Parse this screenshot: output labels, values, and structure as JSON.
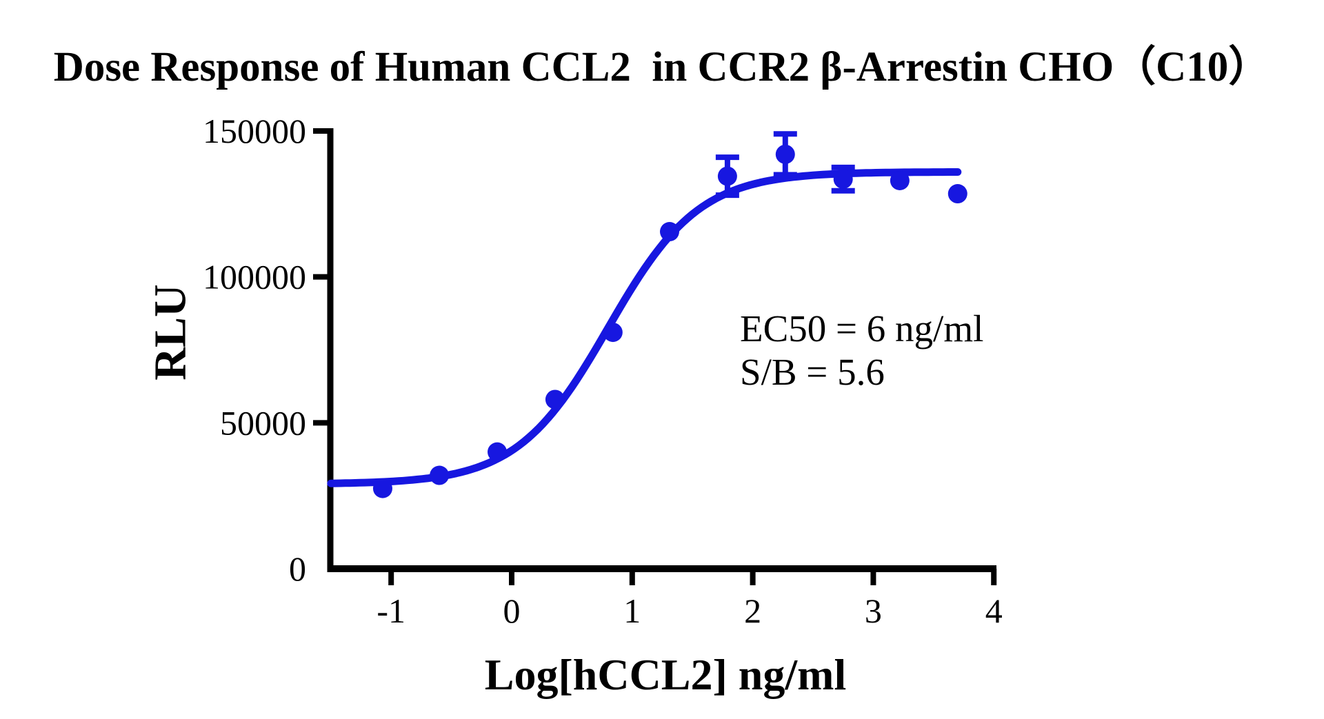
{
  "title": "Dose Response of Human CCL2  in CCR2 β-Arrestin CHO（C10）",
  "annotation": {
    "line1": "EC50 = 6 ng/ml",
    "line2": "S/B = 5.6"
  },
  "colors": {
    "series_blue": "#1717e0",
    "axis_black": "#000000",
    "background": "#ffffff"
  },
  "chart_data": {
    "type": "scatter",
    "title": "Dose Response of Human CCL2  in CCR2 β-Arrestin CHO（C10）",
    "xlabel": "Log[hCCL2] ng/ml",
    "ylabel": "RLU",
    "xlim": [
      -1.5,
      4.02
    ],
    "ylim": [
      0,
      150000
    ],
    "x_ticks": [
      -1,
      0,
      1,
      2,
      3,
      4
    ],
    "y_ticks": [
      0,
      50000,
      100000,
      150000
    ],
    "grid": false,
    "legend": "none",
    "annotations": [
      "EC50 = 6 ng/ml",
      "S/B = 5.6"
    ],
    "series": [
      {
        "name": "hCCL2",
        "marker": "circle",
        "points": [
          {
            "x": -1.07,
            "y": 27500,
            "err": 0
          },
          {
            "x": -0.6,
            "y": 32000,
            "err": 0
          },
          {
            "x": -0.12,
            "y": 40000,
            "err": 0
          },
          {
            "x": 0.36,
            "y": 58000,
            "err": 0
          },
          {
            "x": 0.84,
            "y": 81000,
            "err": 0
          },
          {
            "x": 1.31,
            "y": 115500,
            "err": 0
          },
          {
            "x": 1.79,
            "y": 134500,
            "err": 6500
          },
          {
            "x": 2.27,
            "y": 142000,
            "err": 7000
          },
          {
            "x": 2.75,
            "y": 133500,
            "err": 4000
          },
          {
            "x": 3.22,
            "y": 133000,
            "err": 0
          },
          {
            "x": 3.7,
            "y": 128500,
            "err": 0
          }
        ]
      }
    ],
    "fit_curve": {
      "model": "4PL",
      "bottom": 29000,
      "top": 136000,
      "log_ec50": 0.8,
      "hill": 1.15,
      "ec50_label_value": "6 ng/ml",
      "x_start": -1.5,
      "x_end": 3.7
    }
  }
}
